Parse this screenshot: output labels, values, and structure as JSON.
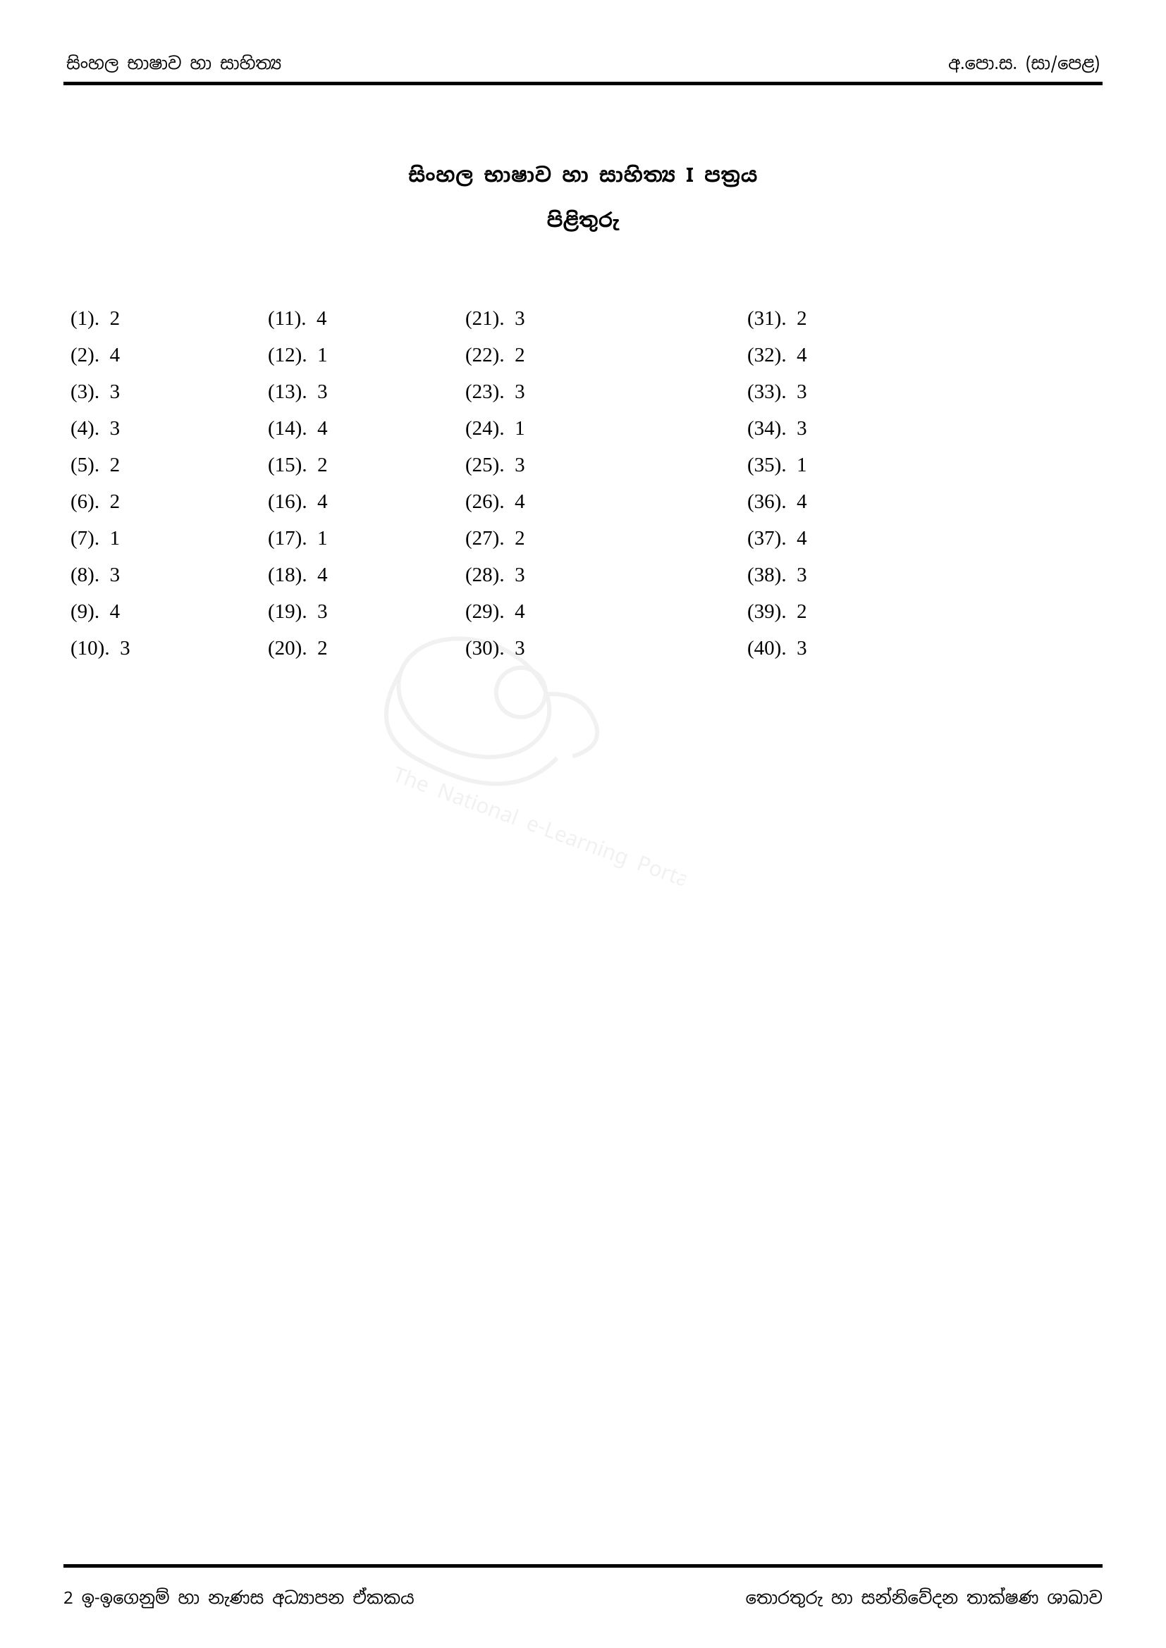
{
  "header": {
    "left": "සිංහල භාෂාව හා සාහිත්‍ය",
    "right": "අ.පො.ස. (සා/පෙළ)"
  },
  "title": {
    "main": "සිංහල භාෂාව හා සාහිත්‍ය   I පත්‍රය",
    "sub": "පිළිතුරු"
  },
  "answers": {
    "columns": [
      [
        {
          "n": "(1).",
          "a": "2"
        },
        {
          "n": "(2).",
          "a": "4"
        },
        {
          "n": "(3).",
          "a": "3"
        },
        {
          "n": "(4).",
          "a": "3"
        },
        {
          "n": "(5).",
          "a": "2"
        },
        {
          "n": "(6).",
          "a": "2"
        },
        {
          "n": "(7).",
          "a": "1"
        },
        {
          "n": "(8).",
          "a": "3"
        },
        {
          "n": "(9).",
          "a": "4"
        },
        {
          "n": "(10).",
          "a": "3"
        }
      ],
      [
        {
          "n": "(11).",
          "a": "4"
        },
        {
          "n": "(12).",
          "a": "1"
        },
        {
          "n": "(13).",
          "a": "3"
        },
        {
          "n": "(14).",
          "a": "4"
        },
        {
          "n": "(15).",
          "a": "2"
        },
        {
          "n": "(16).",
          "a": "4"
        },
        {
          "n": "(17).",
          "a": "1"
        },
        {
          "n": "(18).",
          "a": "4"
        },
        {
          "n": "(19).",
          "a": "3"
        },
        {
          "n": "(20).",
          "a": "2"
        }
      ],
      [
        {
          "n": "(21).",
          "a": "3"
        },
        {
          "n": "(22).",
          "a": "2"
        },
        {
          "n": "(23).",
          "a": "3"
        },
        {
          "n": "(24).",
          "a": "1"
        },
        {
          "n": "(25).",
          "a": "3"
        },
        {
          "n": "(26).",
          "a": "4"
        },
        {
          "n": "(27).",
          "a": "2"
        },
        {
          "n": "(28).",
          "a": "3"
        },
        {
          "n": "(29).",
          "a": "4"
        },
        {
          "n": "(30).",
          "a": "3"
        }
      ],
      [
        {
          "n": "(31).",
          "a": "2"
        },
        {
          "n": "(32).",
          "a": "4"
        },
        {
          "n": "(33).",
          "a": "3"
        },
        {
          "n": "(34).",
          "a": "3"
        },
        {
          "n": "(35).",
          "a": "1"
        },
        {
          "n": "(36).",
          "a": "4"
        },
        {
          "n": "(37).",
          "a": "4"
        },
        {
          "n": "(38).",
          "a": "3"
        },
        {
          "n": "(39).",
          "a": "2"
        },
        {
          "n": "(40).",
          "a": "3"
        }
      ]
    ]
  },
  "footer": {
    "page_num": "2",
    "left": " ඉ-ඉගෙනුම් හා නැණස අධ්‍යාපන ඒකකය",
    "right": "තොරතුරු හා සන්නිවේදන තාක්ෂණ  ශාඛාව"
  },
  "colors": {
    "text": "#000000",
    "rule": "#000000",
    "background": "#ffffff",
    "watermark": "#888888"
  },
  "typography": {
    "header_fontsize": 24,
    "title_fontsize": 28,
    "answer_fontsize": 29,
    "footer_fontsize": 24
  }
}
